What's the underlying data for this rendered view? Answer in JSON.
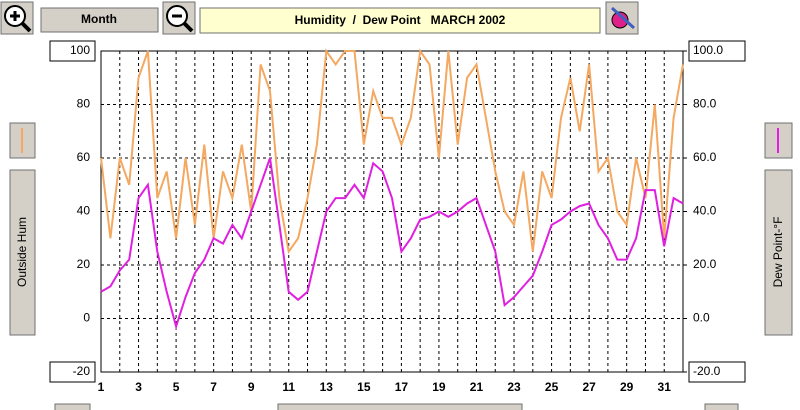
{
  "toolbar": {
    "period": "Month",
    "title": "Humidity  /  Dew Point   MARCH 2002"
  },
  "chart_data": {
    "type": "line",
    "x": [
      1,
      1.5,
      2,
      2.5,
      3,
      3.5,
      4,
      4.5,
      5,
      5.5,
      6,
      6.5,
      7,
      7.5,
      8,
      8.5,
      9,
      9.5,
      10,
      10.5,
      11,
      11.5,
      12,
      12.5,
      13,
      13.5,
      14,
      14.5,
      15,
      15.5,
      16,
      16.5,
      17,
      17.5,
      18,
      18.5,
      19,
      19.5,
      20,
      20.5,
      21,
      21.5,
      22,
      22.5,
      23,
      23.5,
      24,
      24.5,
      25,
      25.5,
      26,
      26.5,
      27,
      27.5,
      28,
      28.5,
      29,
      29.5,
      30,
      30.5,
      31,
      31.5,
      32
    ],
    "series": [
      {
        "name": "Outside Hum",
        "color": "#f4a860",
        "values": [
          60,
          30,
          60,
          50,
          90,
          100,
          45,
          55,
          30,
          60,
          35,
          65,
          30,
          55,
          45,
          65,
          40,
          95,
          85,
          45,
          25,
          30,
          45,
          65,
          100,
          95,
          100,
          100,
          65,
          85,
          75,
          75,
          65,
          75,
          100,
          95,
          60,
          100,
          65,
          90,
          95,
          75,
          55,
          40,
          35,
          55,
          25,
          55,
          45,
          75,
          90,
          70,
          95,
          55,
          60,
          40,
          35,
          60,
          45,
          80,
          30,
          75,
          95
        ]
      },
      {
        "name": "Dew Point-°F",
        "color": "#e020e0",
        "axis": "y2",
        "values": [
          10,
          12,
          18,
          22,
          45,
          50,
          25,
          10,
          -3,
          8,
          17,
          22,
          30,
          28,
          35,
          30,
          40,
          50,
          60,
          35,
          10,
          7,
          10,
          25,
          40,
          45,
          45,
          50,
          45,
          58,
          55,
          45,
          25,
          30,
          37,
          38,
          40,
          38,
          40,
          43,
          45,
          35,
          25,
          5,
          8,
          12,
          16,
          25,
          35,
          37,
          40,
          42,
          43,
          35,
          30,
          22,
          22,
          30,
          48,
          48,
          27,
          45,
          43
        ]
      }
    ],
    "xlim": [
      1,
      32
    ],
    "xticks": [
      1,
      3,
      5,
      7,
      9,
      11,
      13,
      15,
      17,
      19,
      21,
      23,
      25,
      27,
      29,
      31
    ],
    "xminorticks": [
      2,
      4,
      6,
      8,
      10,
      12,
      14,
      16,
      18,
      20,
      22,
      24,
      26,
      28,
      30,
      32
    ],
    "ylim": [
      -20,
      100
    ],
    "yticks": [
      100,
      80,
      60,
      40,
      20,
      0,
      -20
    ],
    "y2lim": [
      -20,
      100
    ],
    "y2ticks": [
      {
        "value": 100,
        "label": "100.0"
      },
      {
        "value": 80,
        "label": "80.0"
      },
      {
        "value": 60,
        "label": "60.0"
      },
      {
        "value": 40,
        "label": "40.0"
      },
      {
        "value": 20,
        "label": "20.0"
      },
      {
        "value": 0,
        "label": "0.0"
      },
      {
        "value": -20,
        "label": "-20.0"
      }
    ],
    "grid": true
  }
}
